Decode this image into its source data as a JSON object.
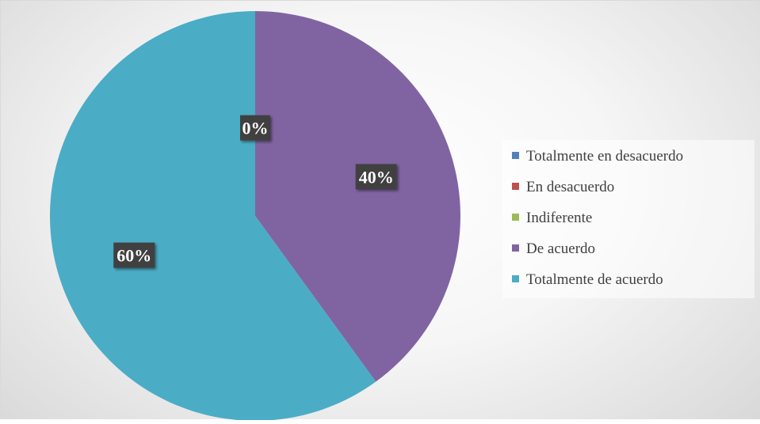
{
  "chart_data": {
    "type": "pie",
    "title": "",
    "start_angle_deg": 0,
    "direction": "clockwise",
    "data_label_format": "percent",
    "legend_position": "right",
    "slices": [
      {
        "label": "Totalmente en desacuerdo",
        "value": 0,
        "percent_label": "0%",
        "color": "#4f81bd"
      },
      {
        "label": "En desacuerdo",
        "value": 0,
        "percent_label": "0%",
        "color": "#c0504d"
      },
      {
        "label": "Indiferente",
        "value": 0,
        "percent_label": "0%",
        "color": "#9bbb59"
      },
      {
        "label": "De acuerdo",
        "value": 40,
        "percent_label": "40%",
        "color": "#8064a2"
      },
      {
        "label": "Totalmente de acuerdo",
        "value": 60,
        "percent_label": "60%",
        "color": "#4bacc6"
      }
    ]
  }
}
